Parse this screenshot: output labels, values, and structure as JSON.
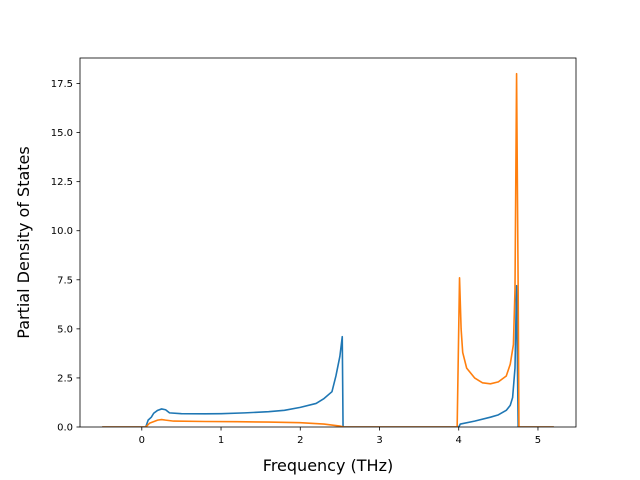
{
  "chart_data": {
    "type": "line",
    "title": "",
    "xlabel": "Frequency (THz)",
    "ylabel": "Partial Density of States",
    "xlim": [
      -0.78,
      5.48
    ],
    "ylim": [
      0,
      18.8
    ],
    "xticks": [
      0,
      1,
      2,
      3,
      4,
      5
    ],
    "xtick_labels": [
      "0",
      "1",
      "2",
      "3",
      "4",
      "5"
    ],
    "yticks": [
      0,
      2.5,
      5,
      7.5,
      10,
      12.5,
      15,
      17.5
    ],
    "ytick_labels": [
      "0.0",
      "2.5",
      "5.0",
      "7.5",
      "10.0",
      "12.5",
      "15.0",
      "17.5"
    ],
    "grid": false,
    "series": [
      {
        "color": "#1f77b4",
        "points": [
          [
            -0.5,
            0
          ],
          [
            0.05,
            0
          ],
          [
            0.08,
            0.35
          ],
          [
            0.12,
            0.5
          ],
          [
            0.15,
            0.7
          ],
          [
            0.2,
            0.85
          ],
          [
            0.25,
            0.92
          ],
          [
            0.3,
            0.88
          ],
          [
            0.35,
            0.72
          ],
          [
            0.5,
            0.68
          ],
          [
            0.8,
            0.67
          ],
          [
            1.0,
            0.68
          ],
          [
            1.3,
            0.72
          ],
          [
            1.6,
            0.78
          ],
          [
            1.8,
            0.85
          ],
          [
            2.0,
            1.0
          ],
          [
            2.2,
            1.2
          ],
          [
            2.3,
            1.45
          ],
          [
            2.4,
            1.8
          ],
          [
            2.45,
            2.6
          ],
          [
            2.5,
            3.6
          ],
          [
            2.53,
            4.6
          ],
          [
            2.54,
            0
          ],
          [
            4.0,
            0
          ],
          [
            4.02,
            0.15
          ],
          [
            4.2,
            0.3
          ],
          [
            4.4,
            0.5
          ],
          [
            4.5,
            0.62
          ],
          [
            4.6,
            0.85
          ],
          [
            4.65,
            1.1
          ],
          [
            4.68,
            1.5
          ],
          [
            4.71,
            3.0
          ],
          [
            4.73,
            7.2
          ],
          [
            4.75,
            0
          ],
          [
            5.2,
            0
          ]
        ]
      },
      {
        "color": "#ff7f0e",
        "points": [
          [
            -0.5,
            0
          ],
          [
            0.05,
            0
          ],
          [
            0.1,
            0.2
          ],
          [
            0.2,
            0.35
          ],
          [
            0.25,
            0.38
          ],
          [
            0.3,
            0.35
          ],
          [
            0.4,
            0.3
          ],
          [
            0.8,
            0.28
          ],
          [
            1.2,
            0.27
          ],
          [
            1.6,
            0.25
          ],
          [
            2.0,
            0.22
          ],
          [
            2.3,
            0.15
          ],
          [
            2.5,
            0.05
          ],
          [
            2.55,
            0
          ],
          [
            3.98,
            0
          ],
          [
            4.01,
            7.6
          ],
          [
            4.03,
            5.0
          ],
          [
            4.05,
            3.8
          ],
          [
            4.1,
            3.0
          ],
          [
            4.2,
            2.5
          ],
          [
            4.3,
            2.25
          ],
          [
            4.4,
            2.2
          ],
          [
            4.5,
            2.3
          ],
          [
            4.6,
            2.6
          ],
          [
            4.65,
            3.2
          ],
          [
            4.69,
            4.2
          ],
          [
            4.71,
            7.0
          ],
          [
            4.72,
            12.5
          ],
          [
            4.73,
            18.0
          ],
          [
            4.75,
            7.0
          ],
          [
            4.76,
            0
          ],
          [
            5.2,
            0
          ]
        ]
      }
    ]
  }
}
